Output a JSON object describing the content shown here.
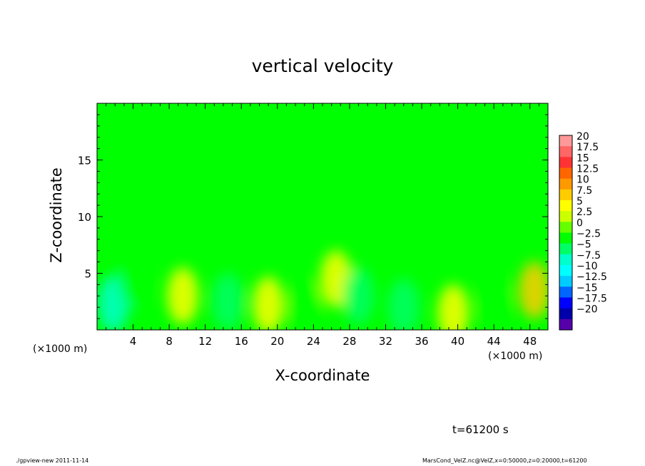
{
  "chart_data": {
    "type": "heatmap",
    "title": "vertical velocity",
    "xlabel": "X-coordinate",
    "ylabel": "Z-coordinate",
    "x_units": "(×1000 m)",
    "y_units": "(×1000 m)",
    "xlim": [
      0,
      50
    ],
    "ylim": [
      0,
      20
    ],
    "x_ticks": [
      4,
      8,
      12,
      16,
      20,
      24,
      28,
      32,
      36,
      40,
      44,
      48
    ],
    "y_ticks": [
      5,
      10,
      15
    ],
    "colorbar": {
      "levels": [
        20,
        17.5,
        15,
        12.5,
        10,
        7.5,
        5,
        2.5,
        0,
        -2.5,
        -5,
        -7.5,
        -10,
        -12.5,
        -15,
        -17.5,
        -20
      ],
      "colors": [
        "#ff9999",
        "#ff6666",
        "#ff3333",
        "#ff6600",
        "#ff9900",
        "#ffcc00",
        "#ffff00",
        "#ccff00",
        "#66ff00",
        "#00ff00",
        "#00ff66",
        "#00ffcc",
        "#00ffff",
        "#00ccff",
        "#0066ff",
        "#0000ff",
        "#0000aa",
        "#5500aa"
      ]
    },
    "features": [
      {
        "x": 1.8,
        "z": 2.3,
        "w": -7.5
      },
      {
        "x": 4.2,
        "z": 4.5,
        "w": -2.5
      },
      {
        "x": 9.5,
        "z": 3.0,
        "w": 5
      },
      {
        "x": 14.5,
        "z": 2.5,
        "w": -5
      },
      {
        "x": 19.0,
        "z": 2.2,
        "w": 5
      },
      {
        "x": 23.0,
        "z": 2.0,
        "w": -2.5
      },
      {
        "x": 26.5,
        "z": 4.5,
        "w": 5
      },
      {
        "x": 29.0,
        "z": 3.0,
        "w": -5
      },
      {
        "x": 34.0,
        "z": 2.0,
        "w": -5
      },
      {
        "x": 39.5,
        "z": 1.5,
        "w": 5
      },
      {
        "x": 44.0,
        "z": 2.5,
        "w": -2.5
      },
      {
        "x": 48.5,
        "z": 3.5,
        "w": 7.5
      }
    ]
  },
  "annotations": {
    "time": "t=61200 s",
    "footer_left": "./gpview-new  2011-11-14",
    "footer_right": "MarsCond_VelZ.nc@VelZ,x=0:50000,z=0:20000,t=61200"
  }
}
